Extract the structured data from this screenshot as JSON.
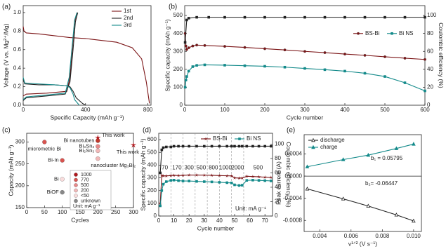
{
  "chart_data": [
    {
      "type": "line",
      "panel_label": "(a)",
      "xlabel": "Specific Capacity (mAh g⁻¹)",
      "ylabel": "Voltage (V vs. Mg²⁺/Mg)",
      "xlim": [
        0,
        820
      ],
      "xticks": [
        0,
        400,
        800
      ],
      "ylim": [
        0,
        1.075
      ],
      "yticks": [
        {
          "value": 0,
          "label": "0.0"
        },
        {
          "value": 0.2,
          "label": "0.2"
        },
        {
          "value": 0.4,
          "label": "0.4"
        },
        {
          "value": 0.6,
          "label": "0.6"
        },
        {
          "value": 0.8,
          "label": "0.8"
        },
        {
          "value": 1.0,
          "label": "1.0"
        }
      ],
      "legend": "upper right",
      "legend_direction": "vertical",
      "series": [
        {
          "name": "1st",
          "color": "#7b1416",
          "x": [
            0,
            5,
            20,
            100,
            200,
            300,
            400,
            500,
            600,
            700,
            760,
            790,
            810,
            null,
            0,
            20,
            150,
            280,
            300,
            315,
            330,
            345
          ],
          "values": [
            0.85,
            0.8,
            0.78,
            0.77,
            0.75,
            0.73,
            0.72,
            0.7,
            0.68,
            0.62,
            0.5,
            0.25,
            0.02,
            null,
            0.1,
            0.12,
            0.13,
            0.15,
            0.3,
            0.6,
            0.9,
            1.0
          ]
        },
        {
          "name": "2nd",
          "color": "#222222",
          "x": [
            0,
            10,
            100,
            200,
            280,
            300,
            320,
            340,
            380,
            400,
            null,
            0,
            20,
            150,
            270,
            300,
            320,
            335,
            350
          ],
          "values": [
            0.28,
            0.23,
            0.22,
            0.22,
            0.21,
            0.2,
            0.15,
            0.08,
            0.02,
            0.0,
            null,
            0.05,
            0.08,
            0.1,
            0.12,
            0.25,
            0.6,
            0.9,
            1.0
          ]
        },
        {
          "name": "3rd",
          "color": "#138a8a",
          "x": [
            0,
            10,
            100,
            200,
            280,
            300,
            320,
            330,
            360,
            null,
            0,
            20,
            150,
            270,
            295,
            315,
            330,
            345
          ],
          "values": [
            0.3,
            0.24,
            0.23,
            0.22,
            0.21,
            0.19,
            0.12,
            0.06,
            0.0,
            null,
            0.06,
            0.09,
            0.11,
            0.13,
            0.3,
            0.65,
            0.92,
            1.0
          ]
        }
      ]
    },
    {
      "type": "line",
      "panel_label": "(b)",
      "xlabel": "Cycle number",
      "ylabel": "Specific capacity (mAh g⁻¹)",
      "y2label": "Coulombic efficiency (%)",
      "xlim": [
        0,
        600
      ],
      "xticks": [
        0,
        100,
        200,
        300,
        400,
        500,
        600
      ],
      "ylim": [
        0,
        555
      ],
      "yticks": [
        0,
        100,
        200,
        300,
        400,
        500
      ],
      "y2lim": [
        0,
        111
      ],
      "y2ticks": [
        0,
        20,
        40,
        60,
        80,
        100
      ],
      "legend": "center right",
      "legend_direction": "horizontal",
      "series": [
        {
          "name": "BS-Bi",
          "color": "#7b1416",
          "marker": "circle",
          "x": [
            1,
            3,
            5,
            10,
            20,
            30,
            50,
            100,
            150,
            200,
            250,
            300,
            350,
            400,
            450,
            500,
            550,
            600
          ],
          "values": [
            400,
            330,
            310,
            320,
            330,
            335,
            333,
            328,
            322,
            315,
            308,
            300,
            293,
            285,
            278,
            270,
            262,
            255
          ]
        },
        {
          "name": "Bi NS",
          "color": "#138a8a",
          "marker": "square",
          "x": [
            1,
            3,
            5,
            10,
            20,
            30,
            50,
            100,
            150,
            200,
            250,
            300,
            350,
            400,
            450,
            500,
            550,
            600
          ],
          "values": [
            100,
            140,
            160,
            190,
            215,
            222,
            225,
            223,
            220,
            217,
            212,
            205,
            198,
            190,
            178,
            160,
            125,
            80
          ]
        },
        {
          "color": "#222222",
          "marker": "square",
          "axis": "y2",
          "x": [
            1,
            5,
            10,
            30,
            60,
            100,
            150,
            200,
            250,
            300,
            350,
            400,
            450,
            500,
            550,
            600
          ],
          "values": [
            70,
            95,
            97,
            98,
            98,
            98,
            98,
            98,
            98,
            98,
            98,
            98,
            98,
            98,
            98,
            98
          ]
        }
      ]
    },
    {
      "type": "scatter",
      "panel_label": "(c)",
      "xlabel": "Cycles",
      "ylabel": "Capacity (mAh g⁻¹)",
      "xlim": [
        0,
        300
      ],
      "xticks": [
        0,
        50,
        100,
        150,
        200,
        250,
        300
      ],
      "ylim": [
        150,
        320
      ],
      "yticks": [
        150,
        200,
        250,
        300
      ],
      "series": [
        {
          "x": [
            50,
            200,
            200,
            200,
            200,
            200,
            100,
            300,
            100,
            100
          ],
          "values": [
            300,
            303,
            310,
            290,
            280,
            262,
            258,
            293,
            215,
            185
          ],
          "labels": [
            "micrometric Bi",
            "Bi nanotubes",
            "This work",
            "Bi₃Sn₂",
            "Bi₂Sn₃",
            "nanocluster Mg₃Bi₂",
            "Bi-In",
            "This work",
            "Bi",
            "BiOF"
          ],
          "colors": [
            "#d9534f",
            "#c0392b",
            "#b0171c",
            "#e8898a",
            "#f2b8b8",
            "#f2b8b8",
            "#d9534f",
            "#b0171c",
            "#f9dcdc",
            "#888888"
          ],
          "markers": [
            "circle",
            "circle",
            "star",
            "circle",
            "circle",
            "circle",
            "circle",
            "star",
            "circle",
            "circle"
          ]
        }
      ],
      "size_legend": [
        {
          "label": "1000",
          "color": "#b0171c"
        },
        {
          "label": "770",
          "color": "#d9534f"
        },
        {
          "label": "500",
          "color": "#e8898a"
        },
        {
          "label": "200",
          "color": "#f2b8b8"
        },
        {
          "label": "<50",
          "color": "#f9dcdc"
        },
        {
          "label": "unknown",
          "color": "#888888"
        }
      ],
      "size_legend_unit": "Unit: mA g⁻¹"
    },
    {
      "type": "line",
      "panel_label": "(d)",
      "xlabel": "Cycle number",
      "ylabel": "Specific capacity (mAh g⁻¹)",
      "y2label": "Coulombic efficiency (%)",
      "xlim": [
        0,
        75
      ],
      "xticks": [
        0,
        10,
        20,
        30,
        40,
        50,
        60,
        70
      ],
      "ylim": [
        0,
        650
      ],
      "yticks": [
        0,
        100,
        200,
        300,
        400,
        500,
        600
      ],
      "y2lim": [
        0,
        115
      ],
      "y2ticks": [
        0,
        20,
        40,
        60,
        80,
        100
      ],
      "legend": "upper right",
      "legend_direction": "horizontal",
      "dividers": [
        8,
        16,
        24,
        32,
        40,
        48,
        56
      ],
      "rate_labels": [
        "70",
        "170",
        "300",
        "500",
        "800",
        "1000",
        "2000",
        "500"
      ],
      "annotations": [
        "Unit: mA g⁻¹"
      ],
      "series": [
        {
          "name": "BS-Bi",
          "color": "#7b1416",
          "marker": "star",
          "x": [
            1,
            2,
            3,
            5,
            8,
            10,
            13,
            16,
            20,
            25,
            30,
            35,
            40,
            45,
            48,
            50,
            53,
            55,
            58,
            62,
            66,
            70,
            74
          ],
          "values": [
            100,
            320,
            315,
            315,
            318,
            320,
            318,
            320,
            322,
            322,
            321,
            320,
            318,
            316,
            315,
            300,
            298,
            298,
            312,
            310,
            308,
            305,
            303
          ]
        },
        {
          "name": "Bi NS",
          "color": "#138a8a",
          "marker": "square",
          "x": [
            1,
            2,
            3,
            5,
            8,
            10,
            13,
            16,
            20,
            25,
            30,
            35,
            40,
            45,
            48,
            50,
            53,
            55,
            58,
            62,
            66,
            70,
            74
          ],
          "values": [
            80,
            200,
            250,
            270,
            280,
            282,
            278,
            275,
            275,
            272,
            270,
            268,
            265,
            262,
            260,
            245,
            240,
            242,
            280,
            282,
            280,
            278,
            276
          ]
        },
        {
          "color": "#222222",
          "marker": "square",
          "axis": "y2",
          "x": [
            1,
            2,
            3,
            5,
            8,
            10,
            13,
            16,
            20,
            25,
            30,
            35,
            40,
            45,
            48,
            50,
            53,
            55,
            58,
            62,
            66,
            70,
            74
          ],
          "values": [
            60,
            92,
            95,
            96,
            96,
            97,
            97,
            97,
            97,
            97,
            97,
            97,
            97,
            97,
            97,
            97,
            97,
            97,
            97,
            97,
            97,
            97,
            97
          ]
        }
      ]
    },
    {
      "type": "line",
      "panel_label": "(e)",
      "xlabel": "v¹ᐟ² (V s⁻¹)",
      "ylabel": "Peak current (A)",
      "xlim": [
        0.003,
        0.0105
      ],
      "xticks": [
        0.004,
        0.006,
        0.008,
        {
          "value": 0.01,
          "label": "0.010"
        }
      ],
      "ylim": [
        -0.001,
        0.00075
      ],
      "yticks": [
        -0.0008,
        -0.0004,
        {
          "value": 0,
          "label": "0.0000"
        },
        0.0004
      ],
      "legend": "upper left",
      "legend_direction": "vertical",
      "annotations": [
        "b₁ = 0.05795",
        "b₂= -0.06447"
      ],
      "series": [
        {
          "name": "discharge",
          "color": "#222222",
          "marker": "triangle-open",
          "x": [
            0.0032,
            0.0055,
            0.0071,
            0.0089,
            0.01
          ],
          "values": [
            -0.00023,
            -0.00041,
            -0.00054,
            -0.0007,
            -0.00081
          ]
        },
        {
          "name": "charge",
          "color": "#138a8a",
          "marker": "triangle",
          "x": [
            0.0032,
            0.0055,
            0.0071,
            0.0089,
            0.01
          ],
          "values": [
            0.00017,
            0.0003,
            0.00038,
            0.0005,
            0.00058
          ]
        }
      ]
    }
  ]
}
